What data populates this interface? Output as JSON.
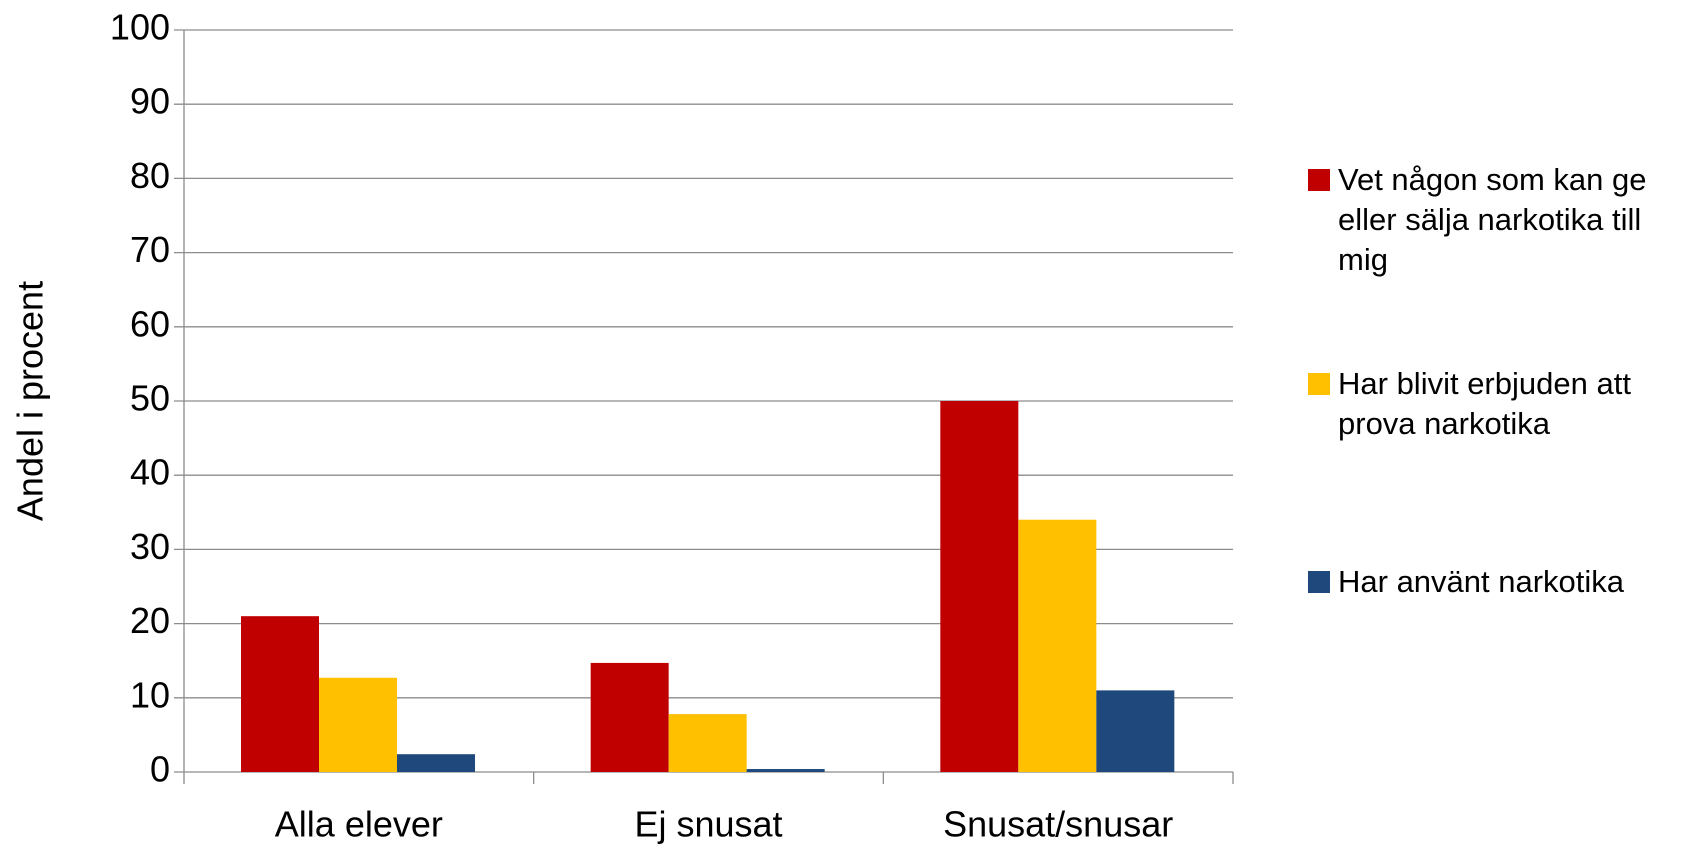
{
  "chart_data": {
    "type": "bar",
    "y_label": "Andel i procent",
    "categories": [
      "Alla elever",
      "Ej snusat",
      "Snusat/snusar"
    ],
    "series": [
      {
        "name": "Vet någon som kan ge eller sälja narkotika till mig",
        "color": "#c00000",
        "values": [
          21,
          14.7,
          50
        ]
      },
      {
        "name": "Har blivit erbjuden att prova narkotika",
        "color": "#ffc000",
        "values": [
          12.7,
          7.8,
          34
        ]
      },
      {
        "name": "Har använt narkotika",
        "color": "#1f497d",
        "values": [
          2.4,
          0.4,
          11
        ]
      }
    ],
    "ylim": [
      0,
      100
    ],
    "yticks": [
      0,
      10,
      20,
      30,
      40,
      50,
      60,
      70,
      80,
      90,
      100
    ],
    "grid": true,
    "legend": "right"
  }
}
